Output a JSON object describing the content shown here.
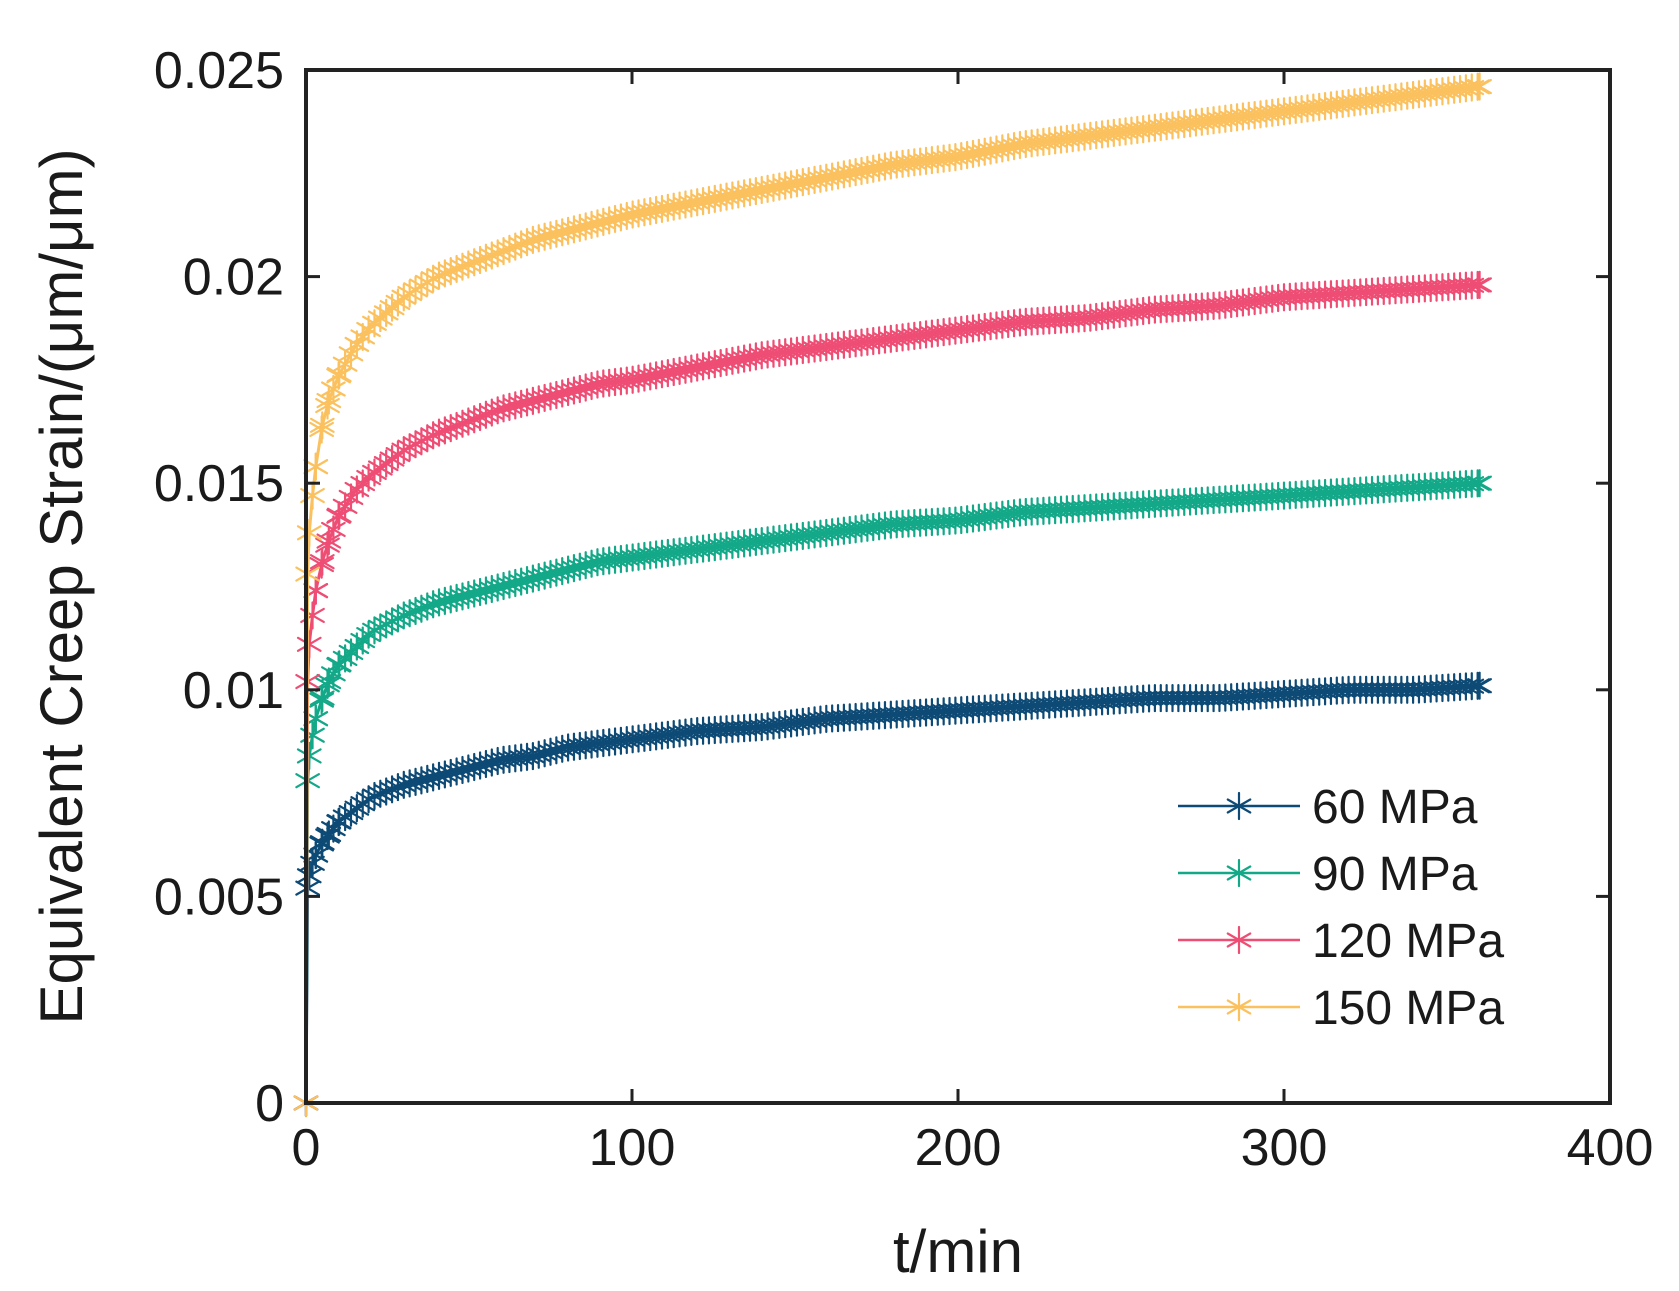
{
  "chart_data": {
    "type": "line",
    "title": "",
    "xlabel": "t/min",
    "ylabel": "Equivalent Creep Strain/(μm/μm)",
    "xlim": [
      0,
      400
    ],
    "ylim": [
      0,
      0.025
    ],
    "x_ticks": [
      {
        "value": 0,
        "label": "0"
      },
      {
        "value": 100,
        "label": "100"
      },
      {
        "value": 200,
        "label": "200"
      },
      {
        "value": 300,
        "label": "300"
      },
      {
        "value": 400,
        "label": "400"
      }
    ],
    "y_ticks": [
      {
        "value": 0,
        "label": "0"
      },
      {
        "value": 0.005,
        "label": "0.005"
      },
      {
        "value": 0.01,
        "label": "0.01"
      },
      {
        "value": 0.015,
        "label": "0.015"
      },
      {
        "value": 0.02,
        "label": "0.02"
      },
      {
        "value": 0.025,
        "label": "0.025"
      }
    ],
    "grid": false,
    "legend_position": "bottom-right",
    "x": [
      0,
      0.5,
      1,
      2,
      3,
      5,
      7,
      10,
      15,
      20,
      30,
      40,
      50,
      60,
      70,
      80,
      90,
      100,
      120,
      140,
      160,
      180,
      200,
      220,
      240,
      260,
      280,
      300,
      320,
      340,
      360
    ],
    "series": [
      {
        "name": "60 MPa",
        "color": "#0d4a75",
        "marker": "asterisk",
        "values": [
          0,
          0.0052,
          0.0055,
          0.0058,
          0.006,
          0.0063,
          0.0065,
          0.0068,
          0.0071,
          0.0074,
          0.0077,
          0.0079,
          0.0081,
          0.0083,
          0.0084,
          0.0086,
          0.0087,
          0.0088,
          0.009,
          0.0091,
          0.0093,
          0.0094,
          0.0095,
          0.0096,
          0.0097,
          0.0098,
          0.0098,
          0.0099,
          0.01,
          0.01,
          0.0101
        ]
      },
      {
        "name": "90 MPa",
        "color": "#13a888",
        "marker": "asterisk",
        "values": [
          0,
          0.0078,
          0.0084,
          0.0089,
          0.0093,
          0.0098,
          0.0102,
          0.0106,
          0.011,
          0.0114,
          0.0118,
          0.0121,
          0.0123,
          0.0125,
          0.0127,
          0.0129,
          0.0131,
          0.0132,
          0.0134,
          0.0136,
          0.0138,
          0.014,
          0.0141,
          0.0143,
          0.0144,
          0.0145,
          0.0146,
          0.0147,
          0.0148,
          0.0149,
          0.015
        ]
      },
      {
        "name": "120 MPa",
        "color": "#ee4d74",
        "marker": "asterisk",
        "values": [
          0,
          0.0102,
          0.0111,
          0.0118,
          0.0124,
          0.0131,
          0.0136,
          0.0142,
          0.0148,
          0.0152,
          0.0158,
          0.0162,
          0.0165,
          0.0168,
          0.017,
          0.0172,
          0.0174,
          0.0175,
          0.0178,
          0.0181,
          0.0183,
          0.0185,
          0.0187,
          0.0189,
          0.019,
          0.0192,
          0.0193,
          0.0195,
          0.0196,
          0.0197,
          0.0198
        ]
      },
      {
        "name": "150 MPa",
        "color": "#fbc15e",
        "marker": "asterisk",
        "values": [
          0,
          0.0128,
          0.0138,
          0.0147,
          0.0154,
          0.0164,
          0.017,
          0.0176,
          0.0183,
          0.0188,
          0.0195,
          0.02,
          0.0203,
          0.0206,
          0.0209,
          0.0211,
          0.0213,
          0.0215,
          0.0218,
          0.0221,
          0.0224,
          0.0227,
          0.0229,
          0.0232,
          0.0234,
          0.0236,
          0.0238,
          0.024,
          0.0242,
          0.0244,
          0.0246
        ]
      }
    ]
  }
}
